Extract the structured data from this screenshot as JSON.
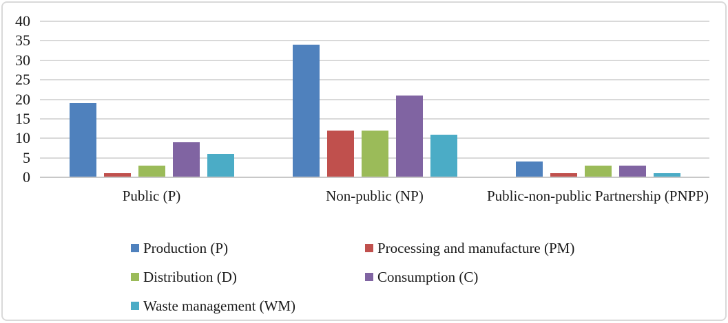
{
  "chart_data": {
    "type": "bar",
    "title": "",
    "xlabel": "",
    "ylabel": "",
    "categories": [
      "Public (P)",
      "Non-public (NP)",
      "Public-non-public Partnership (PNPP)"
    ],
    "series": [
      {
        "name": "Production (P)",
        "color": "#4F81BD",
        "values": [
          19,
          34,
          4
        ]
      },
      {
        "name": "Processing and manufacture (PM)",
        "color": "#C0504D",
        "values": [
          1,
          12,
          1
        ]
      },
      {
        "name": "Distribution (D)",
        "color": "#9BBB59",
        "values": [
          3,
          12,
          3
        ]
      },
      {
        "name": "Consumption (C)",
        "color": "#8064A2",
        "values": [
          9,
          21,
          3
        ]
      },
      {
        "name": "Waste management (WM)",
        "color": "#4BACC6",
        "values": [
          6,
          11,
          1
        ]
      }
    ],
    "y_axis": {
      "min": 0,
      "max": 40,
      "step": 5,
      "tick_labels": [
        "0",
        "5",
        "10",
        "15",
        "20",
        "25",
        "30",
        "35",
        "40"
      ]
    },
    "grid": true,
    "legend_position": "bottom",
    "legend_columns": 2
  },
  "colors": {
    "gridline": "#d9d9d9",
    "axis_line": "#c8c8c8",
    "frame_border": "#d9d9d9",
    "text": "#1a1a1a",
    "background": "#ffffff"
  }
}
